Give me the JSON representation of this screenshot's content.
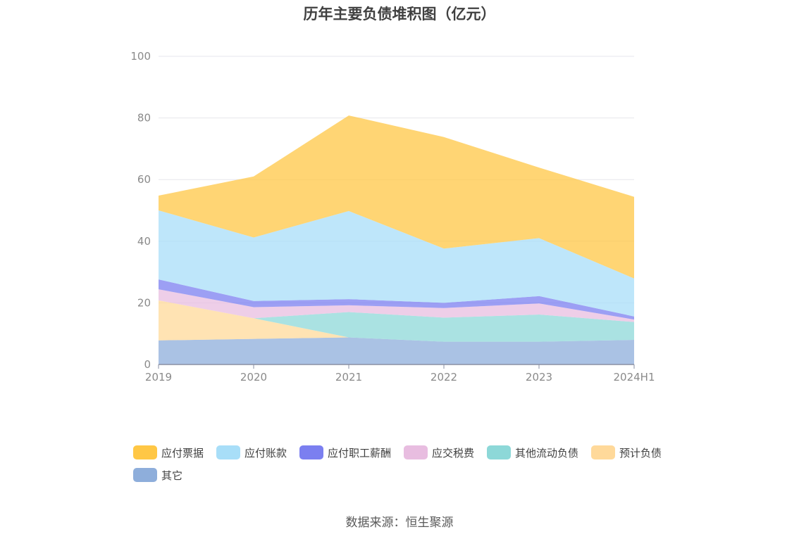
{
  "chart_data": {
    "type": "area",
    "stacked": true,
    "title": "历年主要负债堆积图（亿元）",
    "x": [
      "2019",
      "2020",
      "2021",
      "2022",
      "2023",
      "2024H1"
    ],
    "ylim": [
      0,
      100
    ],
    "yticks": [
      "0",
      "20",
      "40",
      "60",
      "80",
      "100"
    ],
    "grid": true,
    "legend_position": "bottom",
    "series": [
      {
        "name": "其它",
        "color": "#8eaedb",
        "values": [
          7.8,
          8.3,
          8.8,
          7.4,
          7.4,
          8.0
        ]
      },
      {
        "name": "预计负债",
        "color": "#ffd99a",
        "values": [
          13.0,
          6.7,
          0.0,
          0.0,
          0.0,
          0.0
        ]
      },
      {
        "name": "其他流动负债",
        "color": "#8dd8d8",
        "values": [
          0.0,
          0.0,
          8.2,
          7.8,
          8.8,
          5.8
        ]
      },
      {
        "name": "应交税费",
        "color": "#e8bde0",
        "values": [
          3.6,
          3.6,
          2.2,
          3.1,
          3.6,
          0.8
        ]
      },
      {
        "name": "应付职工薪酬",
        "color": "#7b7ff0",
        "values": [
          3.2,
          2.0,
          2.0,
          1.7,
          2.4,
          1.0
        ]
      },
      {
        "name": "应付账款",
        "color": "#a8def8",
        "values": [
          22.4,
          20.6,
          28.6,
          17.6,
          18.8,
          12.3
        ]
      },
      {
        "name": "应付票据",
        "color": "#ffc745",
        "values": [
          4.8,
          19.8,
          31.0,
          36.2,
          22.9,
          26.5
        ]
      }
    ],
    "source": "数据来源：恒生聚源"
  }
}
